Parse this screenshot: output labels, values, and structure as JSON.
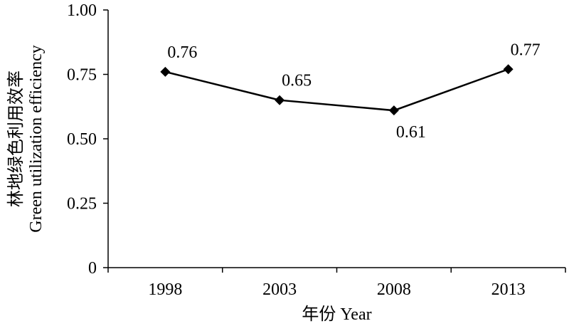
{
  "chart_data": {
    "type": "line",
    "categories": [
      "1998",
      "2003",
      "2008",
      "2013"
    ],
    "series": [
      {
        "values": [
          0.76,
          0.65,
          0.61,
          0.77
        ],
        "labels": [
          "0.76",
          "0.65",
          "0.61",
          "0.77"
        ],
        "marker": "diamond"
      }
    ],
    "ylim": [
      0,
      1
    ],
    "yticks": [
      0,
      0.25,
      0.5,
      0.75,
      1.0
    ],
    "ytick_labels": [
      "0",
      "0.25",
      "0.50",
      "0.75",
      "1.00"
    ],
    "xlabel": "年份 Year",
    "ylabel_cn": "林地绿色利用效率",
    "ylabel_en": "Green utilization efficiency",
    "grid": false,
    "legend": false,
    "colors": {
      "line": "#000000",
      "axis": "#000000"
    }
  }
}
